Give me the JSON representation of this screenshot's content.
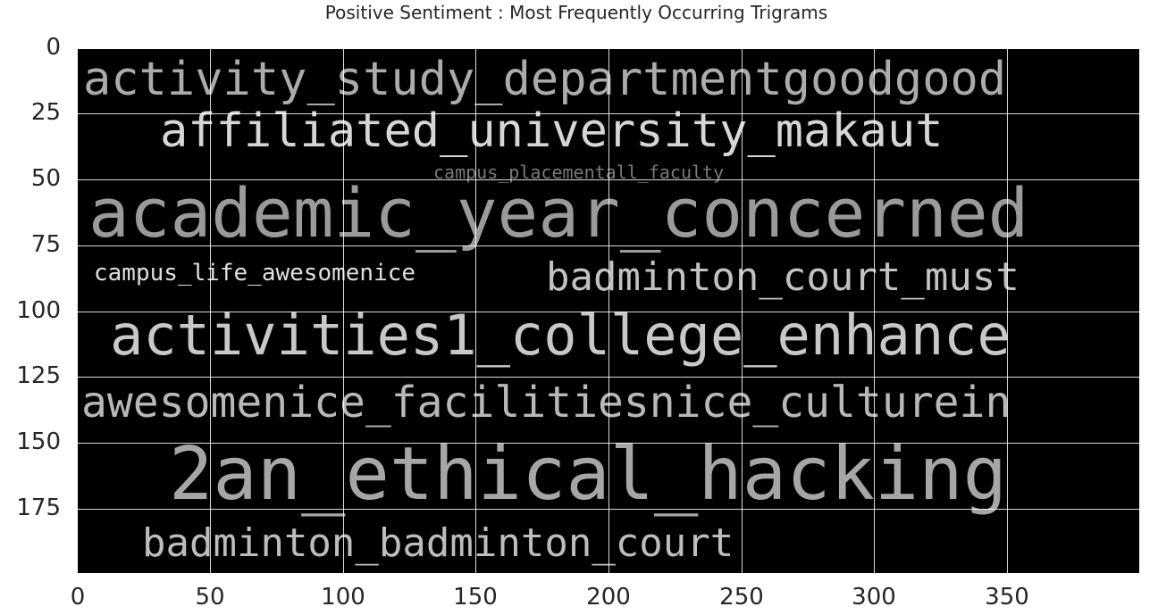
{
  "chart_data": {
    "type": "wordcloud",
    "title": "Positive Sentiment : Most Frequently Occurring Trigrams",
    "xlabel": "",
    "ylabel": "",
    "xlim": [
      0,
      400
    ],
    "ylim": [
      200,
      0
    ],
    "grid": true,
    "x_ticks": [
      "0",
      "50",
      "100",
      "150",
      "200",
      "250",
      "300",
      "350"
    ],
    "y_ticks": [
      "0",
      "25",
      "50",
      "75",
      "100",
      "125",
      "150",
      "175"
    ],
    "words": [
      {
        "text": "activity_study_departmentgoodgood"
      },
      {
        "text": "affiliated_university_makaut"
      },
      {
        "text": "campus_placementall_faculty"
      },
      {
        "text": "academic_year_concerned"
      },
      {
        "text": "campus_life_awesomenice"
      },
      {
        "text": "badminton_court_must"
      },
      {
        "text": "activities1_college_enhance"
      },
      {
        "text": "awesomenice_facilitiesnice_culturein"
      },
      {
        "text": "2an_ethical_hacking"
      },
      {
        "text": "badminton_badminton_court"
      }
    ]
  },
  "colors": {
    "background": "#000000",
    "word": "#ababab",
    "grid": "#ffffff",
    "text": "#262626"
  }
}
